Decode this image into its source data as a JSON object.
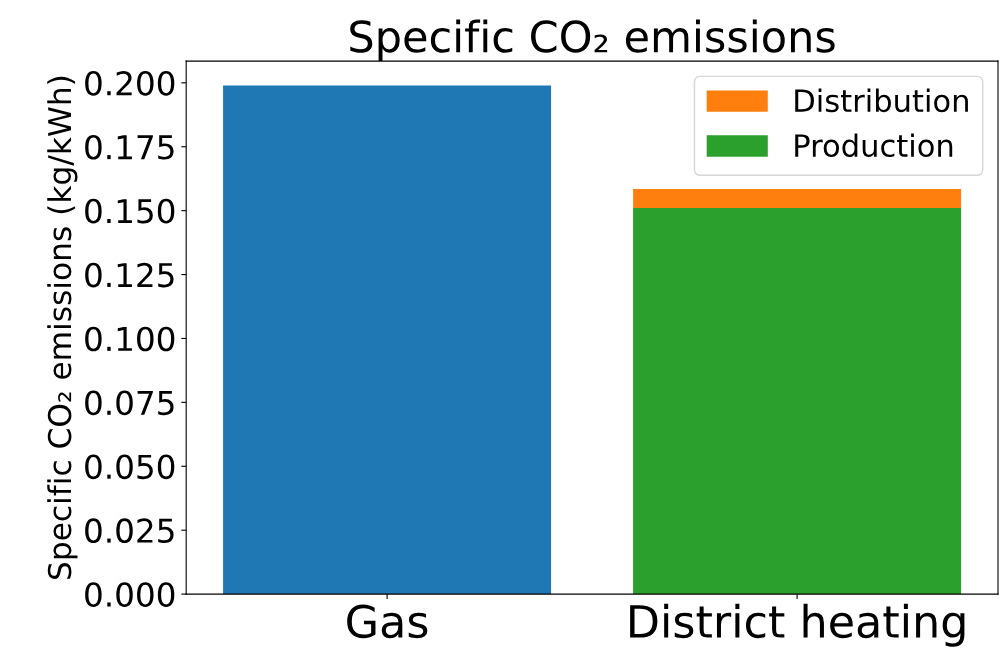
{
  "chart_data": {
    "type": "bar",
    "title": "Specific CO₂ emissions",
    "ylabel": "Specific CO₂ emissions (kg/kWh)",
    "categories": [
      "Gas",
      "District heating"
    ],
    "stacked": true,
    "series": [
      {
        "color": "#1f77b4",
        "values": [
          0.199,
          null
        ]
      },
      {
        "name": "Production",
        "color": "#2ca02c",
        "values": [
          null,
          0.151
        ]
      },
      {
        "name": "Distribution",
        "color": "#ff7f0e",
        "values": [
          null,
          0.0075
        ]
      }
    ],
    "ylim": [
      0,
      0.2085
    ],
    "yticks": [
      {
        "value": 0,
        "label": "0.000"
      },
      {
        "value": 0.025,
        "label": "0.025"
      },
      {
        "value": 0.05,
        "label": "0.050"
      },
      {
        "value": 0.075,
        "label": "0.075"
      },
      {
        "value": 0.1,
        "label": "0.100"
      },
      {
        "value": 0.125,
        "label": "0.125"
      },
      {
        "value": 0.15,
        "label": "0.150"
      },
      {
        "value": 0.175,
        "label": "0.175"
      },
      {
        "value": 0.2,
        "label": "0.200"
      }
    ],
    "grid": false,
    "legend": "top right"
  }
}
